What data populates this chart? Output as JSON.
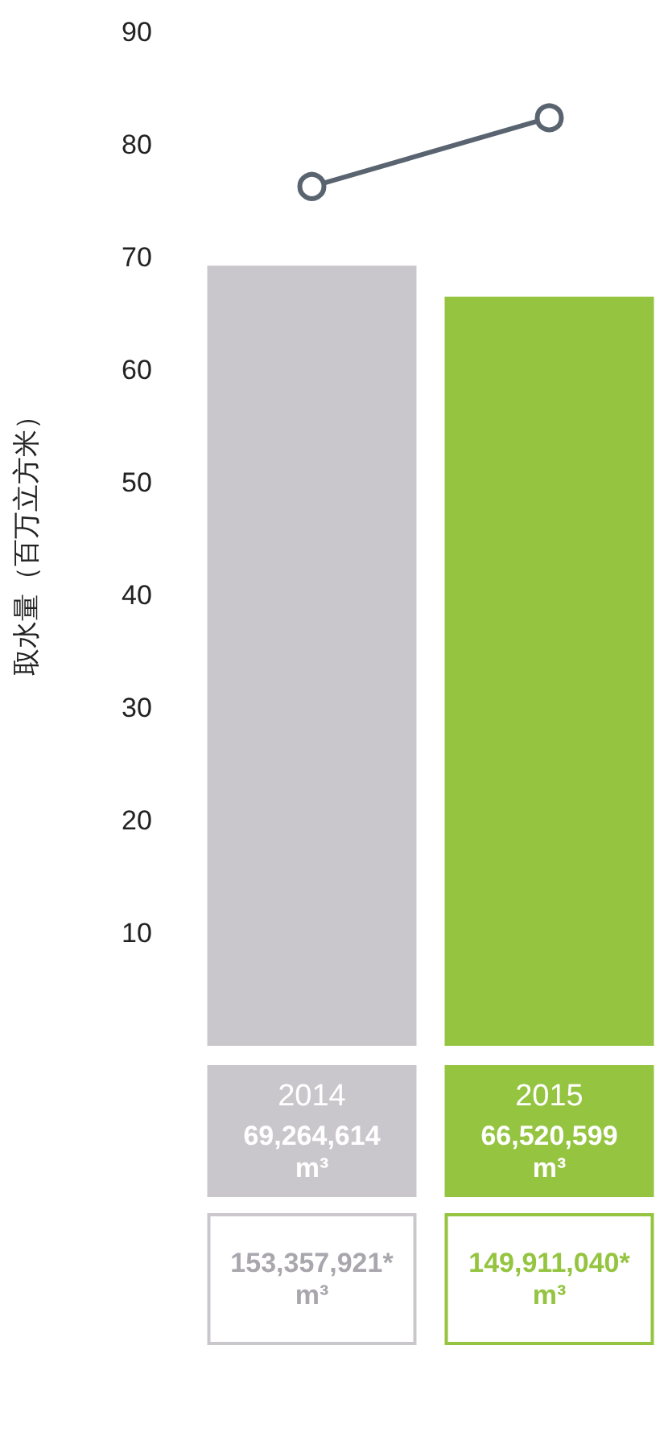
{
  "chart_data": {
    "type": "bar",
    "ylabel": "取水量（百万立方米）",
    "categories": [
      "2014",
      "2015"
    ],
    "series": [
      {
        "colors": [
          "#c9c7cc",
          "#94c440"
        ],
        "values": [
          69.264614,
          66.520599
        ],
        "value_labels": [
          "69,264,614 m³",
          "66,520,599 m³"
        ]
      },
      {
        "type": "line",
        "color": "#5a6470",
        "values": [
          76.3,
          82.4
        ],
        "marker": "circle"
      }
    ],
    "annotations": [
      "153,357,921* m³",
      "149,911,040* m³"
    ],
    "ylim": [
      0,
      90
    ],
    "yticks": [
      10,
      20,
      30,
      40,
      50,
      60,
      70,
      80,
      90
    ],
    "grid": false
  }
}
